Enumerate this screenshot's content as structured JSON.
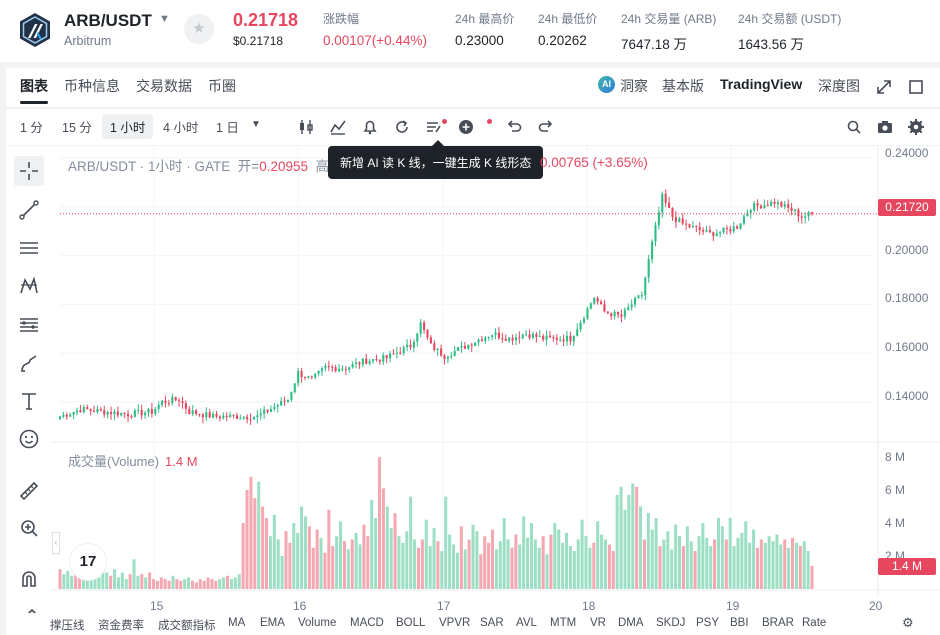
{
  "header": {
    "pair": "ARB/USDT",
    "pair_name": "Arbitrum",
    "last_price": "0.21718",
    "last_price_usd": "$0.21718",
    "stats": [
      {
        "label": "涨跌幅",
        "value": "0.00107(+0.44%)",
        "red": true
      },
      {
        "label": "24h 最高价",
        "value": "0.23000"
      },
      {
        "label": "24h 最低价",
        "value": "0.20262"
      },
      {
        "label": "24h 交易量 (ARB)",
        "value": "7647.18 万"
      },
      {
        "label": "24h 交易额 (USDT)",
        "value": "1643.56 万"
      }
    ]
  },
  "tabs": [
    "图表",
    "币种信息",
    "交易数据",
    "币圈"
  ],
  "right_tabs": [
    "洞察",
    "基本版",
    "TradingView",
    "深度图"
  ],
  "timeframes": [
    "1 分",
    "15 分",
    "1 小时",
    "4 小时",
    "1 日"
  ],
  "active_timeframe": "1 小时",
  "legend": {
    "symbol": "ARB/USDT · 1小时 · GATE",
    "open_label": "开=",
    "open_value": "0.20955",
    "cut_text": "高",
    "change": "0.00765 (+3.65%)"
  },
  "tooltip": "新增 AI 读 K 线，一键生成 K 线形态",
  "volume_legend": {
    "label": "成交量(Volume)",
    "value": "1.4 M"
  },
  "price_tag": "0.21720",
  "volume_tag": "1.4 M",
  "y_labels": [
    "0.24000",
    "0.20000",
    "0.18000",
    "0.16000",
    "0.14000"
  ],
  "volume_labels": [
    "8 M",
    "6 M",
    "4 M",
    "2 M"
  ],
  "x_labels": [
    "15",
    "16",
    "17",
    "18",
    "19",
    "20"
  ],
  "tv_logo": "17",
  "indicators": [
    "撑压线",
    "资金费率",
    "成交额指标",
    "MA",
    "EMA",
    "Volume",
    "MACD",
    "BOLL",
    "VPVR",
    "SAR",
    "AVL",
    "MTM",
    "VR",
    "DMA",
    "SKDJ",
    "PSY",
    "BBI",
    "BRAR",
    "Rate"
  ],
  "colors": {
    "up": "#2ebd85",
    "down": "#e6475e",
    "up_vol": "#9ddfc4",
    "down_vol": "#f5a7b2"
  },
  "chart_data": {
    "type": "candlestick",
    "interval": "1h",
    "y_range": [
      0.126,
      0.245
    ],
    "volume_range_millions": [
      0,
      8
    ],
    "candle_anchors": [
      [
        0,
        0.134
      ],
      [
        6,
        0.137
      ],
      [
        13,
        0.136
      ],
      [
        20,
        0.135
      ],
      [
        27,
        0.136
      ],
      [
        30,
        0.14
      ],
      [
        35,
        0.141
      ],
      [
        38,
        0.136
      ],
      [
        45,
        0.134
      ],
      [
        52,
        0.134
      ],
      [
        58,
        0.134
      ],
      [
        63,
        0.138
      ],
      [
        67,
        0.141
      ],
      [
        70,
        0.152
      ],
      [
        74,
        0.149
      ],
      [
        78,
        0.154
      ],
      [
        84,
        0.154
      ],
      [
        90,
        0.157
      ],
      [
        96,
        0.158
      ],
      [
        100,
        0.161
      ],
      [
        103,
        0.163
      ],
      [
        106,
        0.172
      ],
      [
        109,
        0.163
      ],
      [
        113,
        0.159
      ],
      [
        118,
        0.162
      ],
      [
        122,
        0.165
      ],
      [
        127,
        0.168
      ],
      [
        132,
        0.166
      ],
      [
        137,
        0.168
      ],
      [
        142,
        0.166
      ],
      [
        147,
        0.166
      ],
      [
        150,
        0.166
      ],
      [
        153,
        0.173
      ],
      [
        157,
        0.183
      ],
      [
        160,
        0.177
      ],
      [
        165,
        0.175
      ],
      [
        168,
        0.18
      ],
      [
        171,
        0.184
      ],
      [
        174,
        0.205
      ],
      [
        177,
        0.224
      ],
      [
        180,
        0.216
      ],
      [
        183,
        0.213
      ],
      [
        187,
        0.211
      ],
      [
        191,
        0.209
      ],
      [
        195,
        0.21
      ],
      [
        199,
        0.212
      ],
      [
        203,
        0.22
      ],
      [
        207,
        0.221
      ],
      [
        210,
        0.222
      ],
      [
        213,
        0.22
      ],
      [
        216,
        0.218
      ],
      [
        218,
        0.216
      ],
      [
        221,
        0.2172
      ]
    ],
    "volume_millions": [
      1.2,
      0.9,
      1.1,
      0.8,
      1.4,
      0.7,
      1.0,
      0.6,
      0.9,
      1.1,
      0.7,
      2.0,
      1.0,
      0.8,
      1.2,
      0.7,
      1.0,
      0.6,
      0.9,
      1.8,
      0.8,
      0.9,
      0.7,
      1.0,
      0.6,
      0.5,
      0.7,
      0.6,
      0.5,
      0.8,
      0.6,
      0.5,
      0.6,
      0.7,
      0.5,
      0.4,
      0.6,
      0.5,
      0.7,
      0.6,
      0.5,
      0.6,
      0.7,
      0.8,
      0.6,
      0.7,
      0.9,
      4.0,
      6.0,
      6.8,
      5.5,
      6.5,
      5.0,
      4.3,
      3.2,
      4.5,
      3.0,
      2.0,
      3.5,
      2.8,
      4.0,
      3.4,
      5.0,
      4.4,
      3.8,
      2.5,
      3.6,
      3.1,
      2.2,
      4.8,
      2.6,
      3.2,
      4.1,
      2.9,
      2.4,
      3.0,
      3.4,
      2.7,
      3.9,
      3.2,
      5.4,
      4.3,
      8.0,
      6.1,
      5.0,
      3.7,
      4.6,
      3.2,
      2.8,
      3.5,
      5.6,
      3.0,
      2.5,
      3.0,
      4.2,
      2.6,
      3.7,
      2.9,
      2.3,
      5.6,
      3.3,
      2.7,
      2.2,
      3.8,
      2.4,
      3.0,
      3.9,
      3.5,
      2.1,
      3.2,
      2.8,
      3.6,
      2.4,
      2.9,
      4.3,
      3.0,
      2.5,
      3.3,
      2.7,
      4.4,
      3.1,
      4.0,
      3.0,
      2.5,
      3.2,
      2.1,
      3.3,
      4.0,
      3.6,
      2.8,
      3.4,
      2.6,
      2.3,
      3.0,
      4.2,
      3.2,
      2.5,
      2.8,
      4.1,
      3.3,
      3.0,
      2.7,
      2.3,
      5.7,
      6.2,
      4.8,
      5.7,
      6.4,
      6.2,
      5.0,
      3.0,
      4.6,
      3.6,
      4.3,
      2.6,
      3.0,
      3.5,
      2.4,
      3.9,
      3.2,
      2.6,
      3.8,
      2.9,
      2.3,
      3.2,
      4.0,
      3.1,
      2.6,
      3.0,
      4.3,
      3.8,
      3.0,
      4.3,
      2.6,
      3.1,
      3.4,
      4.1,
      2.8,
      3.6,
      2.5,
      3.0,
      2.8,
      3.2,
      2.9,
      3.3,
      2.7,
      3.0,
      2.5,
      3.1,
      2.8,
      2.6,
      2.9,
      2.3,
      1.4
    ]
  }
}
